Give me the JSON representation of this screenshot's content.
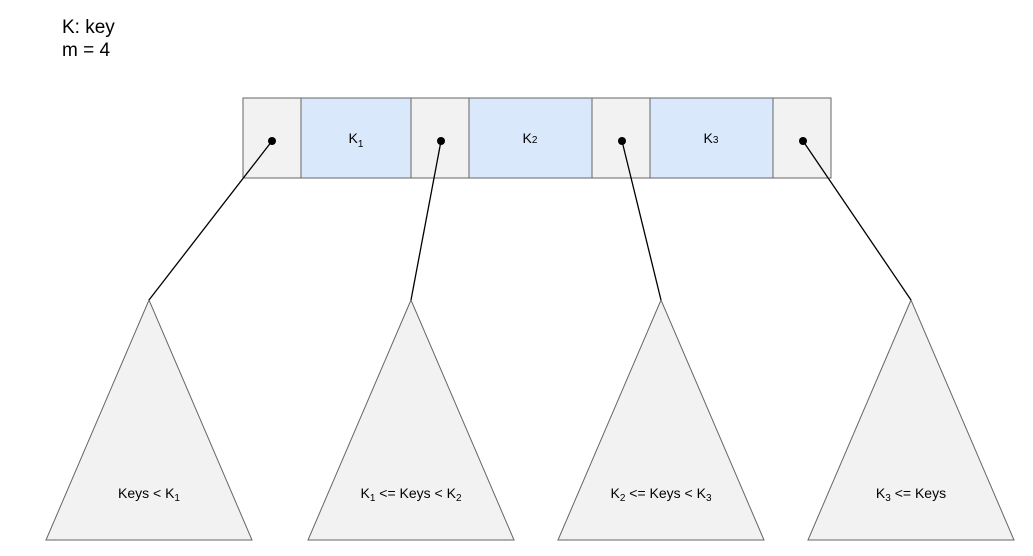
{
  "legend": {
    "line1": "K: key",
    "line2": "m = 4"
  },
  "node": {
    "keys": [
      {
        "base": "K",
        "sub": "1"
      },
      {
        "base": "K",
        "sub": "2"
      },
      {
        "base": "K",
        "sub": "3"
      }
    ]
  },
  "subtrees": [
    {
      "parts": [
        {
          "t": "Keys < K"
        },
        {
          "t": "1",
          "sub": true
        }
      ]
    },
    {
      "parts": [
        {
          "t": "K"
        },
        {
          "t": "1",
          "sub": true
        },
        {
          "t": " <= Keys < K"
        },
        {
          "t": "2",
          "sub": true
        }
      ]
    },
    {
      "parts": [
        {
          "t": "K"
        },
        {
          "t": "2",
          "sub": true
        },
        {
          "t": " <= Keys < K"
        },
        {
          "t": "3",
          "sub": true
        }
      ]
    },
    {
      "parts": [
        {
          "t": "K"
        },
        {
          "t": "3",
          "sub": true
        },
        {
          "t": " <= Keys"
        }
      ]
    }
  ],
  "colors": {
    "pointer_cell_fill": "#f2f2f2",
    "key_cell_fill": "#dae8fc",
    "triangle_fill": "#f2f2f2",
    "stroke": "#666666",
    "line": "#000000"
  }
}
